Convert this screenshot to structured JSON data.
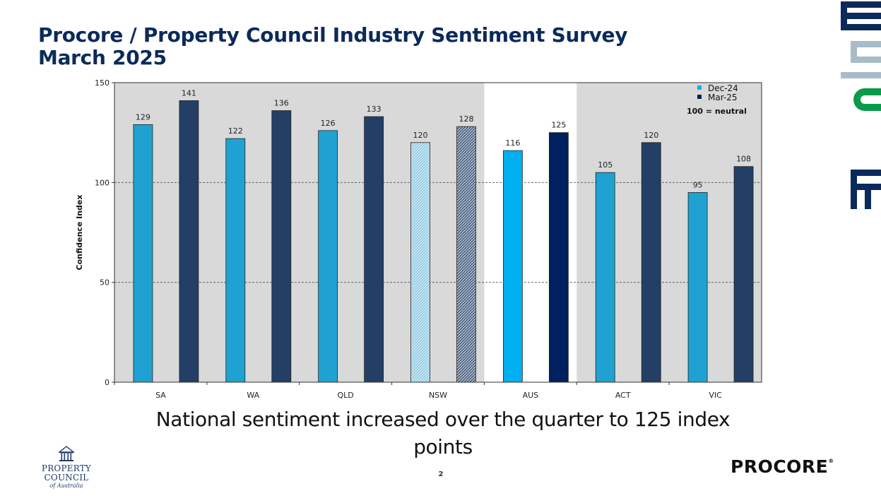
{
  "slide": {
    "title": "Procore / Property Council Industry Sentiment Survey March 2025",
    "caption": "National sentiment increased over the quarter to 125 index points",
    "page_number": "2"
  },
  "logos": {
    "property_council": {
      "line1": "PROPERTY",
      "line2": "COUNCIL",
      "line3": "of Australia",
      "color": "#1e3a6b"
    },
    "procore": {
      "text": "PROCORE",
      "mark": "®"
    }
  },
  "chart_data": {
    "type": "bar",
    "categories": [
      "SA",
      "WA",
      "QLD",
      "NSW",
      "AUS",
      "ACT",
      "VIC"
    ],
    "series": [
      {
        "name": "Dec-24",
        "values": [
          129,
          122,
          126,
          120,
          116,
          105,
          95
        ],
        "color": "#1fa2d1"
      },
      {
        "name": "Mar-25",
        "values": [
          141,
          136,
          133,
          128,
          125,
          120,
          108
        ],
        "color": "#233f66"
      }
    ],
    "legend_note": "100 = neutral",
    "legend_position": "top-right",
    "ylabel": "Confidence Index",
    "xlabel": "",
    "ylim": [
      0,
      150
    ],
    "yticks": [
      0,
      50,
      100,
      150
    ],
    "grid": "dashed horizontal",
    "highlight_category": "AUS",
    "highlight_colors": [
      "#00b0f0",
      "#002060"
    ],
    "patterned_category": "NSW",
    "plot_background": "#d9d9d9"
  }
}
